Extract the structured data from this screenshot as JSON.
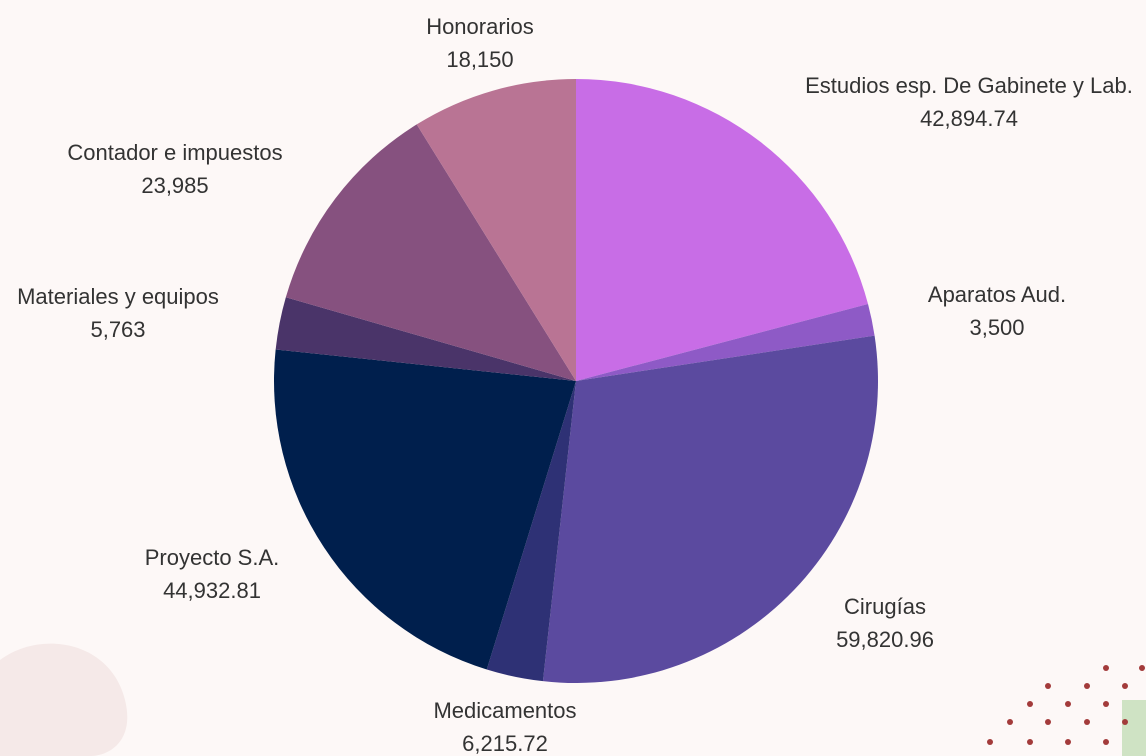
{
  "chart_data": {
    "type": "pie",
    "categories": [
      "Estudios esp. De Gabinete y Lab.",
      "Aparatos Aud.",
      "Cirugías",
      "Medicamentos",
      "Proyecto S.A.",
      "Materiales y equipos",
      "Contador e impuestos",
      "Honorarios"
    ],
    "values": [
      42894.74,
      3500,
      59820.96,
      6215.72,
      44932.81,
      5763,
      23985,
      18150
    ],
    "value_labels": [
      "42,894.74",
      "3,500",
      "59,820.96",
      "6,215.72",
      "44,932.81",
      "5,763",
      "23,985",
      "18,150"
    ],
    "colors": [
      "#c86de6",
      "#8e5ac6",
      "#5b4a9f",
      "#2e3175",
      "#001f4d",
      "#4a3469",
      "#86517f",
      "#b97494"
    ]
  }
}
